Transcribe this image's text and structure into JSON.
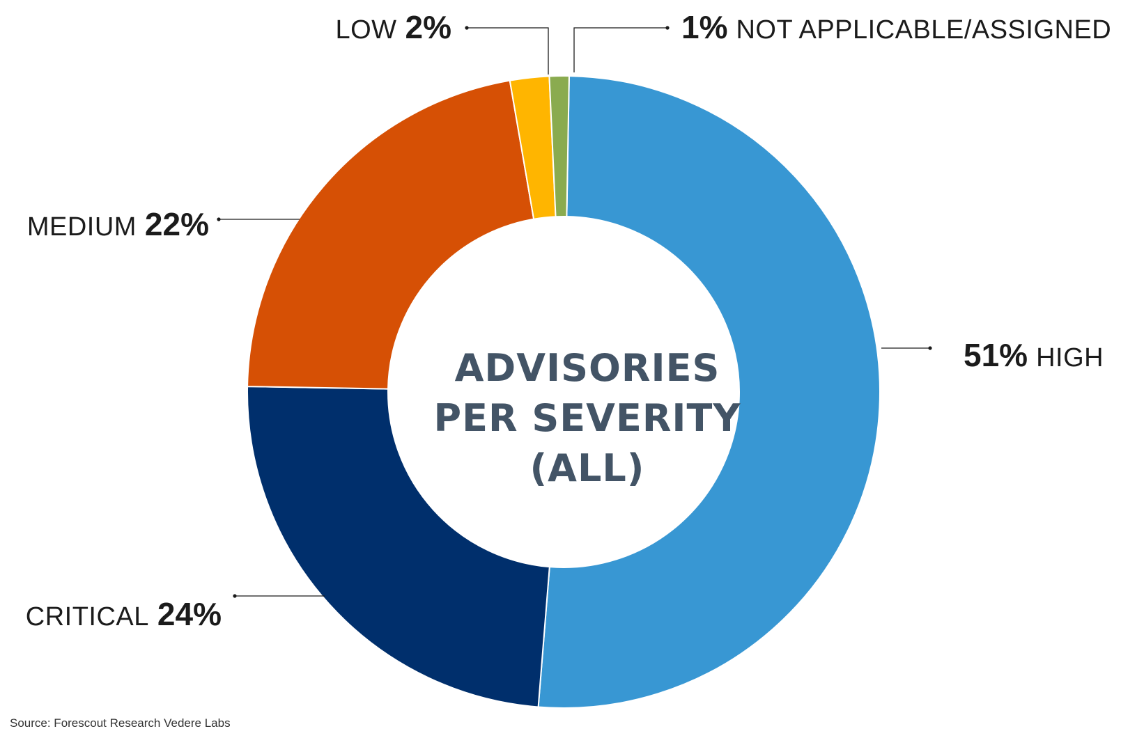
{
  "chart_data": {
    "type": "pie",
    "donut": true,
    "title_lines": [
      "ADVISORIES",
      "PER SEVERITY",
      "(ALL)"
    ],
    "source": "Source: Forescout Research Vedere Labs",
    "slices": [
      {
        "name": "HIGH",
        "value": 51,
        "label": "51%",
        "color": "#3897d3"
      },
      {
        "name": "CRITICAL",
        "value": 24,
        "label": "24%",
        "color": "#002f6c"
      },
      {
        "name": "MEDIUM",
        "value": 22,
        "label": "22%",
        "color": "#d65005"
      },
      {
        "name": "LOW",
        "value": 2,
        "label": "2%",
        "color": "#ffb500"
      },
      {
        "name": "NOT APPLICABLE/ASSIGNED",
        "value": 1,
        "label": "1%",
        "color": "#8aab4f"
      }
    ]
  }
}
